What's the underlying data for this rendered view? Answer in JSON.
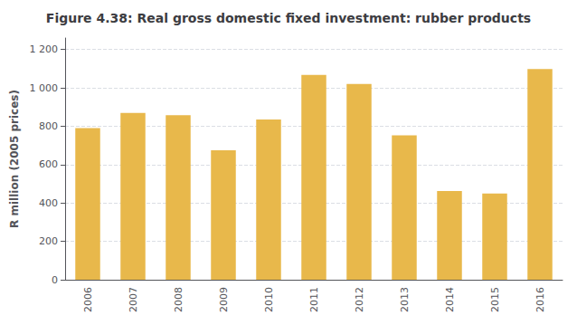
{
  "chart_data": {
    "type": "bar",
    "title": "Figure 4.38: Real gross domestic fixed investment: rubber products",
    "ylabel": "R million (2005 prices)",
    "categories": [
      "2006",
      "2007",
      "2008",
      "2009",
      "2010",
      "2011",
      "2012",
      "2013",
      "2014",
      "2015",
      "2016"
    ],
    "values": [
      790,
      870,
      858,
      675,
      835,
      1068,
      1020,
      753,
      462,
      450,
      1098
    ],
    "color": "#E8B84B",
    "ylim": [
      0,
      1260
    ],
    "yticks": [
      0,
      200,
      400,
      600,
      800,
      {
        "value": 1000,
        "label": "1 000"
      },
      {
        "value": 1200,
        "label": "1 200"
      }
    ],
    "grid": true
  }
}
